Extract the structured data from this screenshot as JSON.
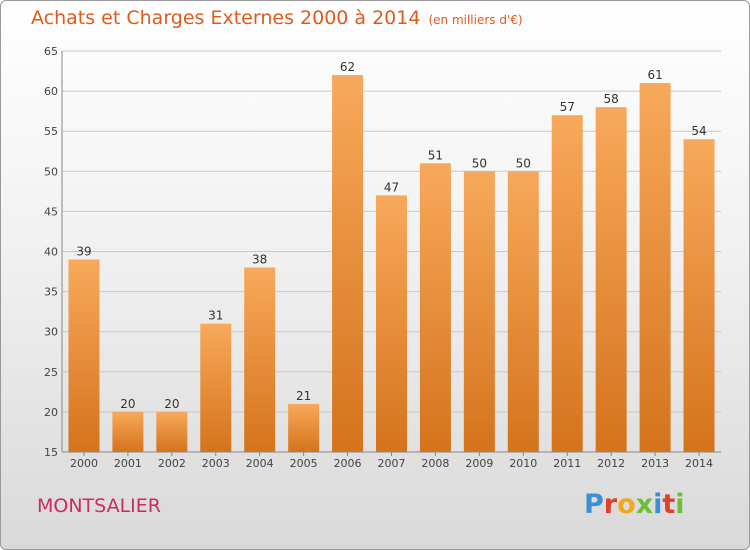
{
  "header": {
    "title": "Achats et Charges Externes 2000 à 2014",
    "unit": "(en milliers d'€)"
  },
  "footer": {
    "commune": "MONTSALIER",
    "logo": "Proxiti",
    "logo_colors": [
      "#3a8fd6",
      "#e0402a",
      "#f2a81c",
      "#6bbf3a",
      "#3a8fd6",
      "#e0402a",
      "#6bbf3a"
    ]
  },
  "colors": {
    "bar_light": "#f7a95a",
    "bar_dark": "#d5731c",
    "title": "#e05a1c",
    "commune": "#cc2a66",
    "grid": "#c8c8c8"
  },
  "chart_data": {
    "type": "bar",
    "categories": [
      "2000",
      "2001",
      "2002",
      "2003",
      "2004",
      "2005",
      "2006",
      "2007",
      "2008",
      "2009",
      "2010",
      "2011",
      "2012",
      "2013",
      "2014"
    ],
    "values": [
      39,
      20,
      20,
      31,
      38,
      21,
      62,
      47,
      51,
      50,
      50,
      57,
      58,
      61,
      54
    ],
    "data_labels": [
      "39",
      "20",
      "20",
      "31",
      "38",
      "21",
      "62",
      "47",
      "51",
      "50",
      "50",
      "57",
      "58",
      "61",
      "54"
    ],
    "title": "Achats et Charges Externes 2000 à 2014",
    "subtitle": "(en milliers d'€)",
    "xlabel": "",
    "ylabel": "",
    "ylim": [
      15,
      65
    ],
    "yticks": [
      15,
      20,
      25,
      30,
      35,
      40,
      45,
      50,
      55,
      60,
      65
    ],
    "grid": true,
    "legend": "none"
  }
}
